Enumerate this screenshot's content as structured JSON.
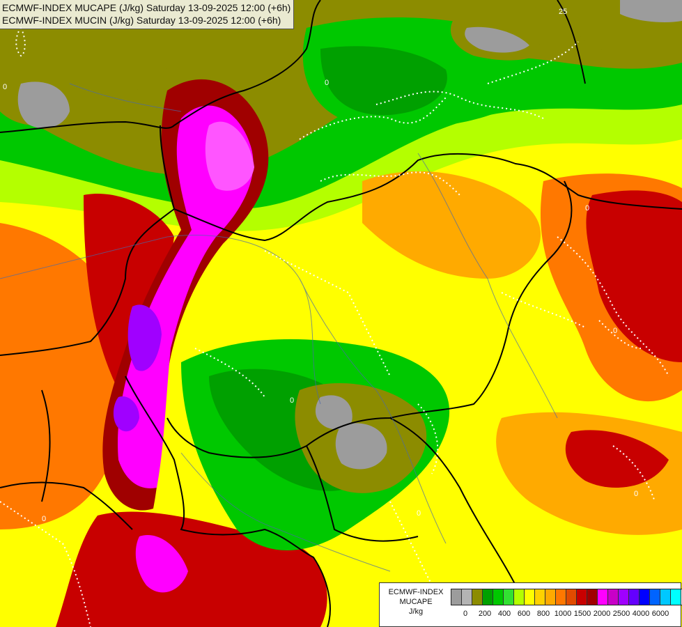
{
  "header": {
    "line1": "ECMWF-INDEX MUCAPE (J/kg) Saturday 13-09-2025 12:00 (+6h)",
    "line2": "ECMWF-INDEX MUCIN (J/kg) Saturday 13-09-2025 12:00 (+6h)"
  },
  "legend": {
    "line1": "ECMWF-INDEX",
    "line2": "MUCAPE",
    "line3": "J/kg",
    "colors": [
      "#9c9c9c",
      "#b4b4b4",
      "#8c8c00",
      "#00a000",
      "#00c800",
      "#32e132",
      "#b4ff00",
      "#ffff00",
      "#ffd200",
      "#ffaa00",
      "#ff7800",
      "#e14b00",
      "#c80000",
      "#a00000",
      "#ff00ff",
      "#c800c8",
      "#a000ff",
      "#6400ff",
      "#0000ff",
      "#0064ff",
      "#00c8ff",
      "#00ffff",
      "#ffffff"
    ],
    "ticks": [
      "0",
      "200",
      "400",
      "600",
      "800",
      "1000",
      "1500",
      "2000",
      "2500",
      "4000",
      "6000"
    ]
  },
  "contour_labels": [
    "0",
    "0",
    "0",
    "0",
    "0",
    "0",
    "0",
    "0",
    "25"
  ]
}
